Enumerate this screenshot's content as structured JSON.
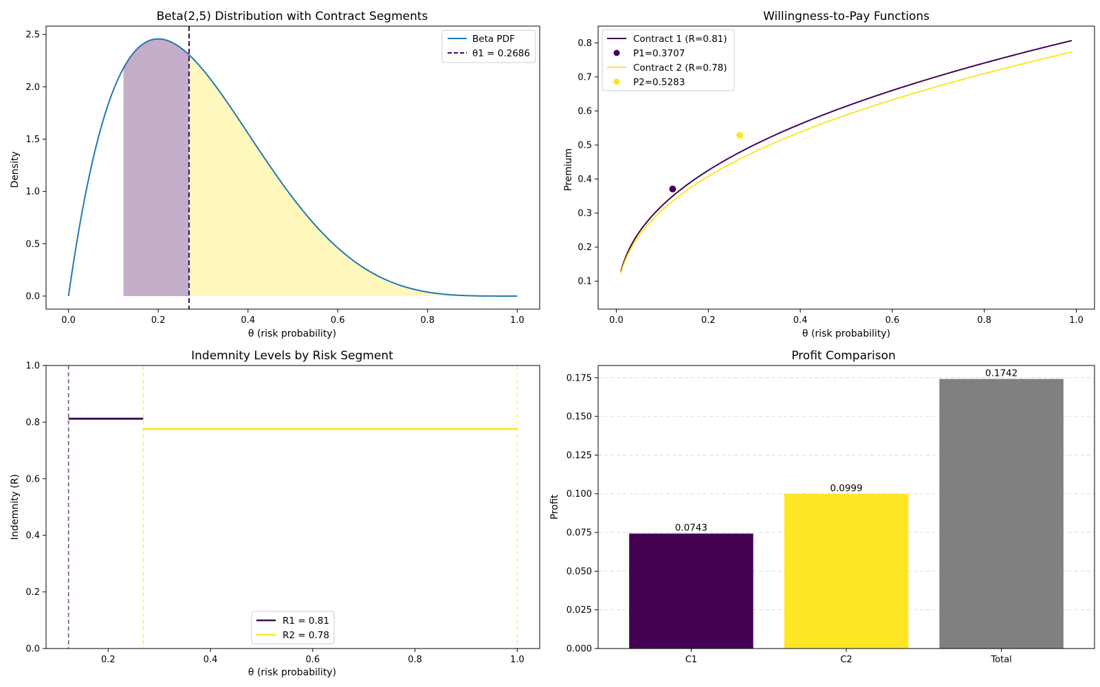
{
  "chart_data": [
    {
      "id": "beta",
      "type": "line",
      "title": "Beta(2,5) Distribution with Contract Segments",
      "xlabel": "θ (risk probability)",
      "ylabel": "Density",
      "xlim": [
        -0.05,
        1.05
      ],
      "ylim": [
        -0.125,
        2.58
      ],
      "xticks": [
        0.0,
        0.2,
        0.4,
        0.6,
        0.8,
        1.0
      ],
      "xtick_labels": [
        "0.0",
        "0.2",
        "0.4",
        "0.6",
        "0.8",
        "1.0"
      ],
      "yticks": [
        0.0,
        0.5,
        1.0,
        1.5,
        2.0,
        2.5
      ],
      "ytick_labels": [
        "0.0",
        "0.5",
        "1.0",
        "1.5",
        "2.0",
        "2.5"
      ],
      "series": [
        {
          "name": "Beta PDF",
          "distribution": "beta",
          "alpha": 2,
          "beta": 5,
          "color": "#1f77b4"
        }
      ],
      "shaded_segments": [
        {
          "from": 0.1225,
          "to": 0.2686,
          "color": "#440154",
          "opacity": 0.32
        },
        {
          "from": 0.2686,
          "to": 1.0,
          "color": "#fde725",
          "opacity": 0.3
        }
      ],
      "vline": {
        "x": 0.2686,
        "name": "θ1 = 0.2686",
        "color": "#440154"
      },
      "legend": {
        "position": "upper right",
        "entries": [
          "Beta PDF",
          "θ1 = 0.2686"
        ]
      }
    },
    {
      "id": "wtp",
      "type": "line",
      "title": "Willingness-to-Pay Functions",
      "xlabel": "θ (risk probability)",
      "ylabel": "Premium",
      "xlim": [
        -0.0395,
        1.0395
      ],
      "ylim": [
        0.0177,
        0.8493
      ],
      "xticks": [
        0.0,
        0.2,
        0.4,
        0.6,
        0.8,
        1.0
      ],
      "xtick_labels": [
        "0.0",
        "0.2",
        "0.4",
        "0.6",
        "0.8",
        "1.0"
      ],
      "yticks": [
        0.1,
        0.2,
        0.3,
        0.4,
        0.5,
        0.6,
        0.7,
        0.8
      ],
      "ytick_labels": [
        "0.1",
        "0.2",
        "0.3",
        "0.4",
        "0.5",
        "0.6",
        "0.7",
        "0.8"
      ],
      "series": [
        {
          "name": "Contract 1 (R=0.81)",
          "R": 0.81,
          "x_range": [
            0.01,
            0.99
          ],
          "color": "#440154"
        },
        {
          "name": "Contract 2 (R=0.78)",
          "R": 0.776,
          "x_range": [
            0.01,
            0.99
          ],
          "color": "#fde725"
        }
      ],
      "points": [
        {
          "name": "P1=0.3707",
          "x": 0.1225,
          "y": 0.3707,
          "color": "#440154"
        },
        {
          "name": "P2=0.5283",
          "x": 0.2686,
          "y": 0.5283,
          "color": "#fde725"
        }
      ],
      "legend": {
        "position": "upper left",
        "entries": [
          "Contract 1 (R=0.81)",
          "P1=0.3707",
          "Contract 2 (R=0.78)",
          "P2=0.5283"
        ]
      }
    },
    {
      "id": "indemnity",
      "type": "line",
      "title": "Indemnity Levels by Risk Segment",
      "xlabel": "θ (risk probability)",
      "ylabel": "Indemnity (R)",
      "xlim": [
        0.0786,
        1.0439
      ],
      "ylim": [
        0.0,
        1.0
      ],
      "xticks": [
        0.2,
        0.4,
        0.6,
        0.8,
        1.0
      ],
      "xtick_labels": [
        "0.2",
        "0.4",
        "0.6",
        "0.8",
        "1.0"
      ],
      "yticks": [
        0.0,
        0.2,
        0.4,
        0.6,
        0.8,
        1.0
      ],
      "ytick_labels": [
        "0.0",
        "0.2",
        "0.4",
        "0.6",
        "0.8",
        "1.0"
      ],
      "segments": [
        {
          "name": "R1 = 0.81",
          "x": [
            0.1225,
            0.2686
          ],
          "y": 0.812,
          "color": "#440154"
        },
        {
          "name": "R2 = 0.78",
          "x": [
            0.2686,
            1.0
          ],
          "y": 0.776,
          "color": "#fde725"
        }
      ],
      "vlines": [
        {
          "x": 0.1225,
          "color": "#440154"
        },
        {
          "x": 0.2686,
          "color": "#fde725"
        },
        {
          "x": 1.0,
          "color": "#fde725"
        }
      ],
      "legend": {
        "position": "lower center",
        "entries": [
          "R1 = 0.81",
          "R2 = 0.78"
        ]
      }
    },
    {
      "id": "profit",
      "type": "bar",
      "title": "Profit Comparison",
      "xlabel": "",
      "ylabel": "Profit",
      "categories": [
        "C1",
        "C2",
        "Total"
      ],
      "values": [
        0.0743,
        0.0999,
        0.1742
      ],
      "value_labels": [
        "0.0743",
        "0.0999",
        "0.1742"
      ],
      "colors": [
        "#440154",
        "#fde725",
        "#808080"
      ],
      "ylim": [
        0.0,
        0.1829
      ],
      "yticks": [
        0.0,
        0.025,
        0.05,
        0.075,
        0.1,
        0.125,
        0.15,
        0.175
      ],
      "ytick_labels": [
        "0.000",
        "0.025",
        "0.050",
        "0.075",
        "0.100",
        "0.125",
        "0.150",
        "0.175"
      ],
      "grid": "y-dashed"
    }
  ]
}
